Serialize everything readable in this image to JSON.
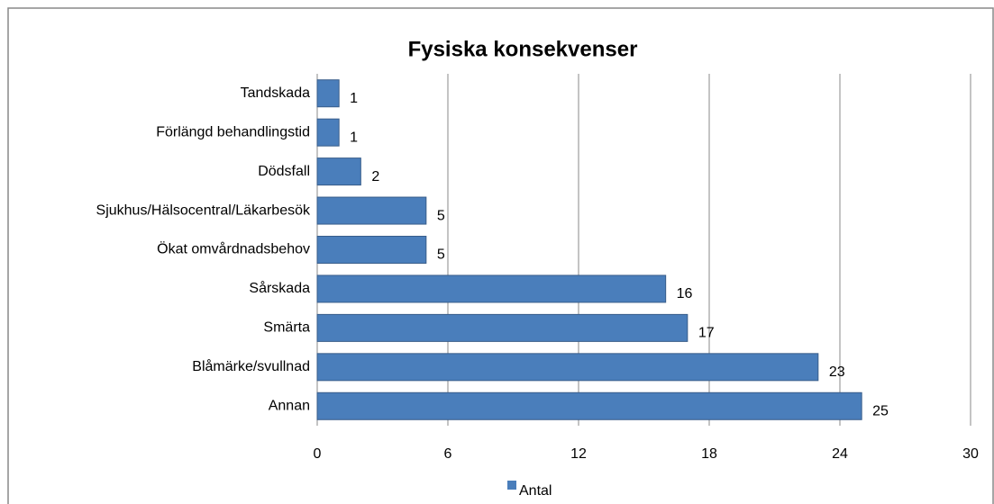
{
  "chart_data": {
    "type": "bar",
    "orientation": "horizontal",
    "title": "Fysiska konsekvenser",
    "categories": [
      "Tandskada",
      "Förlängd behandlingstid",
      "Dödsfall",
      "Sjukhus/Hälsocentral/Läkarbesök",
      "Ökat omvårdnadsbehov",
      "Sårskada",
      "Smärta",
      "Blåmärke/svullnad",
      "Annan"
    ],
    "series": [
      {
        "name": "Antal",
        "color": "#4a7ebb",
        "values": [
          1,
          1,
          2,
          5,
          5,
          16,
          17,
          23,
          25
        ]
      }
    ],
    "xlim": [
      0,
      30
    ],
    "xticks": [
      0,
      6,
      12,
      18,
      24,
      30
    ],
    "grid": true,
    "legend": "bottom"
  }
}
